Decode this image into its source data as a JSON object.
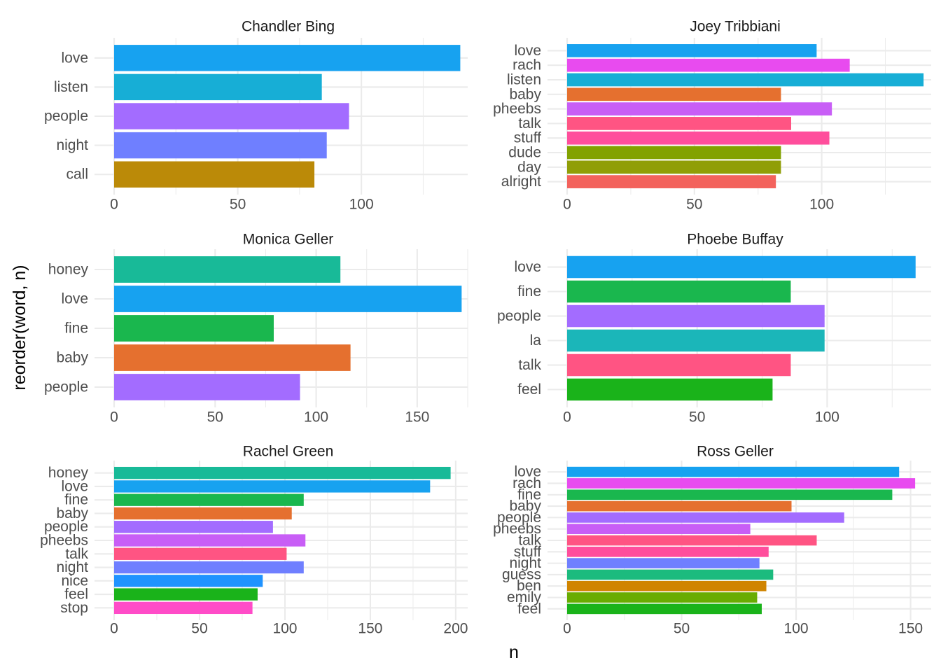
{
  "chart_data": {
    "type": "bar",
    "orientation": "horizontal",
    "layout": "facet_wrap 3 rows x 2 columns, free scales",
    "xlabel": "n",
    "ylabel": "reorder(word, n)",
    "grid": true,
    "legend": "none",
    "word_colors": {
      "love": "#17A2F0",
      "listen": "#17AED6",
      "people": "#A36CFF",
      "night": "#6F7FFF",
      "call": "#BB8A08",
      "rach": "#E84BEF",
      "baby": "#E5702F",
      "pheebs": "#C85EF6",
      "talk": "#FF5483",
      "stuff": "#FF4E9C",
      "dude": "#82A200",
      "day": "#909E07",
      "alright": "#F3625C",
      "honey": "#18BA98",
      "fine": "#1AB74E",
      "la": "#1BB6B9",
      "feel": "#1AB31A",
      "nice": "#1F93FF",
      "stop": "#FF4CC8",
      "guess": "#1CBB7E",
      "ben": "#D08400",
      "emily": "#69AC02"
    },
    "panels": [
      {
        "title": "Chandler Bing",
        "xlim": [
          0,
          143
        ],
        "xticks": [
          0,
          50,
          100
        ],
        "words": [
          "love",
          "listen",
          "people",
          "night",
          "call"
        ],
        "values": [
          140,
          84,
          95,
          86,
          81
        ]
      },
      {
        "title": "Joey Tribbiani",
        "xlim": [
          0,
          143
        ],
        "xticks": [
          0,
          50,
          100
        ],
        "words": [
          "love",
          "rach",
          "listen",
          "baby",
          "pheebs",
          "talk",
          "stuff",
          "dude",
          "day",
          "alright"
        ],
        "values": [
          98,
          111,
          140,
          84,
          104,
          88,
          103,
          84,
          84,
          82
        ]
      },
      {
        "title": "Monica Geller",
        "xlim": [
          0,
          175
        ],
        "xticks": [
          0,
          50,
          100,
          150
        ],
        "words": [
          "honey",
          "love",
          "fine",
          "baby",
          "people"
        ],
        "values": [
          112,
          172,
          79,
          117,
          92
        ]
      },
      {
        "title": "Phoebe Buffay",
        "xlim": [
          0,
          140
        ],
        "xticks": [
          0,
          50,
          100
        ],
        "words": [
          "love",
          "fine",
          "people",
          "la",
          "talk",
          "feel"
        ],
        "values": [
          134,
          86,
          99,
          99,
          86,
          79
        ]
      },
      {
        "title": "Rachel Green",
        "xlim": [
          0,
          207
        ],
        "xticks": [
          0,
          50,
          100,
          150,
          200
        ],
        "words": [
          "honey",
          "love",
          "fine",
          "baby",
          "people",
          "pheebs",
          "talk",
          "night",
          "nice",
          "feel",
          "stop"
        ],
        "values": [
          197,
          185,
          111,
          104,
          93,
          112,
          101,
          111,
          87,
          84,
          81
        ]
      },
      {
        "title": "Ross Geller",
        "xlim": [
          0,
          159
        ],
        "xticks": [
          0,
          50,
          100,
          150
        ],
        "words": [
          "love",
          "rach",
          "fine",
          "baby",
          "people",
          "pheebs",
          "talk",
          "stuff",
          "night",
          "guess",
          "ben",
          "emily",
          "feel"
        ],
        "values": [
          145,
          152,
          142,
          98,
          121,
          80,
          109,
          88,
          84,
          90,
          87,
          83,
          85
        ]
      }
    ]
  }
}
